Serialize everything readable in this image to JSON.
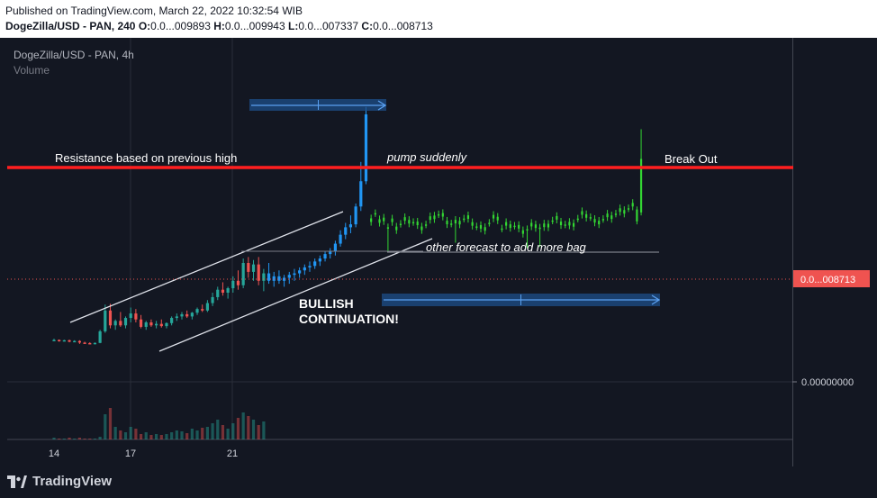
{
  "header": {
    "published": "Published on TradingView.com, March 22, 2022 10:32:54 WIB",
    "symbol_line": "DogeZilla/USD - PAN, 240",
    "o_label": "O:",
    "o_value": "0.0...009893",
    "h_label": "H:",
    "h_value": "0.0...009943",
    "l_label": "L:",
    "l_value": "0.0...007337",
    "c_label": "C:",
    "c_value": "0.0...008713"
  },
  "legend": {
    "title": "DogeZilla/USD - PAN, 4h",
    "volume": "Volume"
  },
  "price_axis": {
    "current_label": "0.0...008713",
    "zero_label": "0.00000000"
  },
  "time_axis": {
    "ticks": [
      "14",
      "17",
      "21"
    ]
  },
  "annotations": {
    "resistance": "Resistance based on previous high",
    "pump": "pump suddenly",
    "breakout": "Break Out",
    "forecast": "other forecast to add more bag",
    "bullish1": "BULLISH",
    "bullish2": "CONTINUATION!"
  },
  "footer": {
    "brand": "TradingView"
  },
  "colors": {
    "background": "#131722",
    "up": "#26a69a",
    "down": "#ef5350",
    "user_up": "#2196f3",
    "forecast": "#33d633",
    "resistance": "#ff1f1f",
    "price_tag": "#ef5350"
  },
  "chart_data": {
    "type": "candlestick",
    "title": "DogeZilla/USD - PAN, 4h",
    "interval": "240",
    "last_bar": {
      "open": "0.0...009893",
      "high": "0.0...009943",
      "low": "0.0...007337",
      "close": "0.0...008713"
    },
    "x_ticks": [
      "14",
      "17",
      "21"
    ],
    "y_ticks": [
      "0.00000000"
    ],
    "series": [
      {
        "name": "Volume",
        "type": "bar"
      }
    ],
    "historical": [
      [
        14.0,
        28,
        29,
        27.5,
        28.2
      ],
      [
        14.2,
        28.2,
        28.5,
        27,
        27.6
      ],
      [
        14.4,
        27.6,
        28.3,
        27.2,
        28
      ],
      [
        14.6,
        28,
        28.4,
        26.6,
        27
      ],
      [
        14.8,
        27,
        28,
        26.8,
        27.5
      ],
      [
        15.0,
        27.5,
        28,
        25.5,
        26.4
      ],
      [
        15.2,
        26.4,
        27,
        25.8,
        26.1
      ],
      [
        15.4,
        26.1,
        26.6,
        25.3,
        25.8
      ],
      [
        15.6,
        25.8,
        26.5,
        25.2,
        26.2
      ],
      [
        15.8,
        26.2,
        35,
        26,
        34
      ],
      [
        16.0,
        34,
        52,
        33,
        48
      ],
      [
        16.2,
        48,
        52.5,
        36,
        38
      ],
      [
        16.4,
        38,
        42,
        35,
        41
      ],
      [
        16.6,
        41,
        47,
        37,
        38
      ],
      [
        16.8,
        38,
        44,
        36,
        43
      ],
      [
        17.0,
        43,
        50,
        40,
        46
      ],
      [
        17.2,
        46,
        49,
        40,
        42
      ],
      [
        17.4,
        42,
        45,
        36,
        37
      ],
      [
        17.6,
        37,
        41,
        35,
        40
      ],
      [
        17.8,
        40,
        42,
        37,
        38
      ],
      [
        18.0,
        38,
        41,
        36,
        39
      ],
      [
        18.2,
        39,
        42,
        36.5,
        37.5
      ],
      [
        18.4,
        37.5,
        40,
        36,
        39.5
      ],
      [
        18.6,
        39.5,
        44,
        38,
        43
      ],
      [
        18.8,
        43,
        46,
        41,
        44
      ],
      [
        19.0,
        44,
        47,
        42,
        45.5
      ],
      [
        19.2,
        45.5,
        48,
        43,
        44
      ],
      [
        19.4,
        44,
        47,
        42,
        46.5
      ],
      [
        19.6,
        46.5,
        50,
        45,
        49
      ],
      [
        19.8,
        49,
        52,
        47,
        48
      ],
      [
        20.0,
        48,
        55,
        47,
        53
      ],
      [
        20.2,
        53,
        60,
        51,
        57
      ],
      [
        20.4,
        57,
        64,
        55,
        62
      ],
      [
        20.6,
        62,
        67,
        58,
        60
      ],
      [
        20.8,
        60,
        64,
        56,
        63
      ],
      [
        21.0,
        63,
        71,
        60,
        68
      ],
      [
        21.2,
        68,
        75,
        62,
        65
      ],
      [
        21.4,
        65,
        83,
        63,
        80
      ],
      [
        21.6,
        80,
        84,
        70,
        74
      ],
      [
        21.8,
        74,
        82,
        68,
        79
      ],
      [
        22.0,
        79,
        84,
        65,
        68
      ],
      [
        22.2,
        68,
        76,
        61,
        73
      ]
    ],
    "user_candles": [
      [
        22.4,
        73,
        80,
        66,
        68
      ],
      [
        22.6,
        68,
        74,
        64,
        71
      ],
      [
        22.8,
        71,
        75,
        66,
        68
      ],
      [
        23.0,
        68,
        72,
        64,
        70
      ],
      [
        23.2,
        70,
        74,
        66,
        72
      ],
      [
        23.4,
        72,
        76,
        68,
        73
      ],
      [
        23.6,
        73,
        77,
        70,
        75
      ],
      [
        23.8,
        75,
        79,
        72,
        77
      ],
      [
        24.0,
        77,
        81,
        74,
        78
      ],
      [
        24.2,
        78,
        83,
        76,
        81
      ],
      [
        24.4,
        81,
        85,
        78,
        83
      ],
      [
        24.6,
        83,
        88,
        81,
        86
      ],
      [
        24.8,
        86,
        90,
        83,
        88
      ],
      [
        25.0,
        88,
        95,
        85,
        93
      ],
      [
        25.2,
        93,
        102,
        91,
        99
      ],
      [
        25.4,
        99,
        107,
        96,
        104
      ],
      [
        25.6,
        104,
        112,
        100,
        106
      ],
      [
        25.8,
        106,
        120,
        104,
        118
      ],
      [
        26.0,
        118,
        148,
        115,
        135
      ],
      [
        26.2,
        135,
        185,
        133,
        180
      ]
    ],
    "forecast_candles_count": 65,
    "annotations_text": [
      "Resistance based on previous high",
      "pump suddenly",
      "Break Out",
      "other forecast to add more bag",
      "BULLISH CONTINUATION!"
    ]
  }
}
